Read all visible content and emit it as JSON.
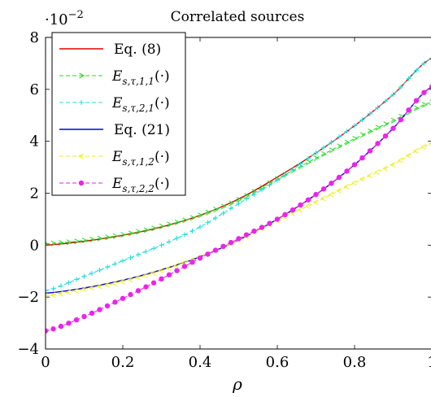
{
  "chart_data": {
    "type": "line",
    "title": "Correlated sources",
    "xlabel": "ρ",
    "ylabel": "",
    "y_exponent_label": "·10",
    "y_exponent_power": "−2",
    "xlim": [
      0,
      1
    ],
    "ylim": [
      -4,
      8
    ],
    "x_ticks": [
      0,
      0.2,
      0.4,
      0.6,
      0.8,
      1
    ],
    "x_tick_labels": [
      "0",
      "0.2",
      "0.4",
      "0.6",
      "0.8",
      "1"
    ],
    "y_ticks": [
      -4,
      -2,
      0,
      2,
      4,
      6,
      8
    ],
    "y_tick_labels": [
      "−4",
      "−2",
      "0",
      "2",
      "4",
      "6",
      "8"
    ],
    "legend_position": "top-left",
    "series": [
      {
        "name": "Eq. (8)",
        "legend_main": "Eq. (8)",
        "color": "#e00000",
        "style": "solid",
        "marker": "none",
        "x": [
          0,
          0.1,
          0.2,
          0.3,
          0.4,
          0.5,
          0.6,
          0.7,
          0.8,
          0.9,
          1.0
        ],
        "y": [
          0.0,
          0.15,
          0.38,
          0.7,
          1.15,
          1.78,
          2.62,
          3.55,
          4.6,
          5.8,
          7.2
        ]
      },
      {
        "name": "E_{s,τ,1,1}(·)",
        "legend_main": "E",
        "legend_sub": "s,τ,1,1",
        "legend_tail": "(·)",
        "color": "#22dd22",
        "style": "dashed",
        "marker": "triangle-right",
        "x": [
          0,
          0.1,
          0.2,
          0.3,
          0.4,
          0.5,
          0.6,
          0.7,
          0.8,
          0.9,
          1.0
        ],
        "y": [
          0.05,
          0.18,
          0.4,
          0.72,
          1.15,
          1.75,
          2.55,
          3.35,
          4.1,
          4.8,
          5.5
        ]
      },
      {
        "name": "E_{s,τ,2,1}(·)",
        "legend_main": "E",
        "legend_sub": "s,τ,2,1",
        "legend_tail": "(·)",
        "color": "#22dddd",
        "style": "dashed",
        "marker": "plus",
        "x": [
          0,
          0.1,
          0.2,
          0.3,
          0.4,
          0.5,
          0.6,
          0.7,
          0.8,
          0.9,
          1.0
        ],
        "y": [
          -1.75,
          -1.2,
          -0.6,
          0.0,
          0.7,
          1.6,
          2.5,
          3.55,
          4.6,
          5.8,
          7.2
        ]
      },
      {
        "name": "Eq. (21)",
        "legend_main": "Eq. (21)",
        "color": "#0000dd",
        "style": "solid",
        "marker": "none",
        "x": [
          0,
          0.1,
          0.2,
          0.3,
          0.4,
          0.5,
          0.6,
          0.7,
          0.8,
          0.9,
          1.0
        ],
        "y": [
          -1.85,
          -1.65,
          -1.35,
          -0.95,
          -0.45,
          0.2,
          1.0,
          1.95,
          3.1,
          4.5,
          6.1
        ]
      },
      {
        "name": "E_{s,τ,1,2}(·)",
        "legend_main": "E",
        "legend_sub": "s,τ,1,2",
        "legend_tail": "(·)",
        "color": "#eeee22",
        "style": "dashed",
        "marker": "triangle-left",
        "x": [
          0,
          0.1,
          0.2,
          0.3,
          0.4,
          0.5,
          0.6,
          0.7,
          0.8,
          0.9,
          1.0
        ],
        "y": [
          -1.95,
          -1.7,
          -1.4,
          -0.98,
          -0.45,
          0.2,
          0.95,
          1.65,
          2.4,
          3.1,
          3.9
        ]
      },
      {
        "name": "E_{s,τ,2,2}(·)",
        "legend_main": "E",
        "legend_sub": "s,τ,2,2",
        "legend_tail": "(·)",
        "color": "#ee22ee",
        "style": "dashed",
        "marker": "dot",
        "x": [
          0,
          0.1,
          0.2,
          0.3,
          0.4,
          0.5,
          0.6,
          0.7,
          0.8,
          0.9,
          1.0
        ],
        "y": [
          -3.3,
          -2.75,
          -2.05,
          -1.3,
          -0.5,
          0.25,
          1.0,
          1.95,
          3.1,
          4.5,
          6.1
        ]
      }
    ]
  }
}
